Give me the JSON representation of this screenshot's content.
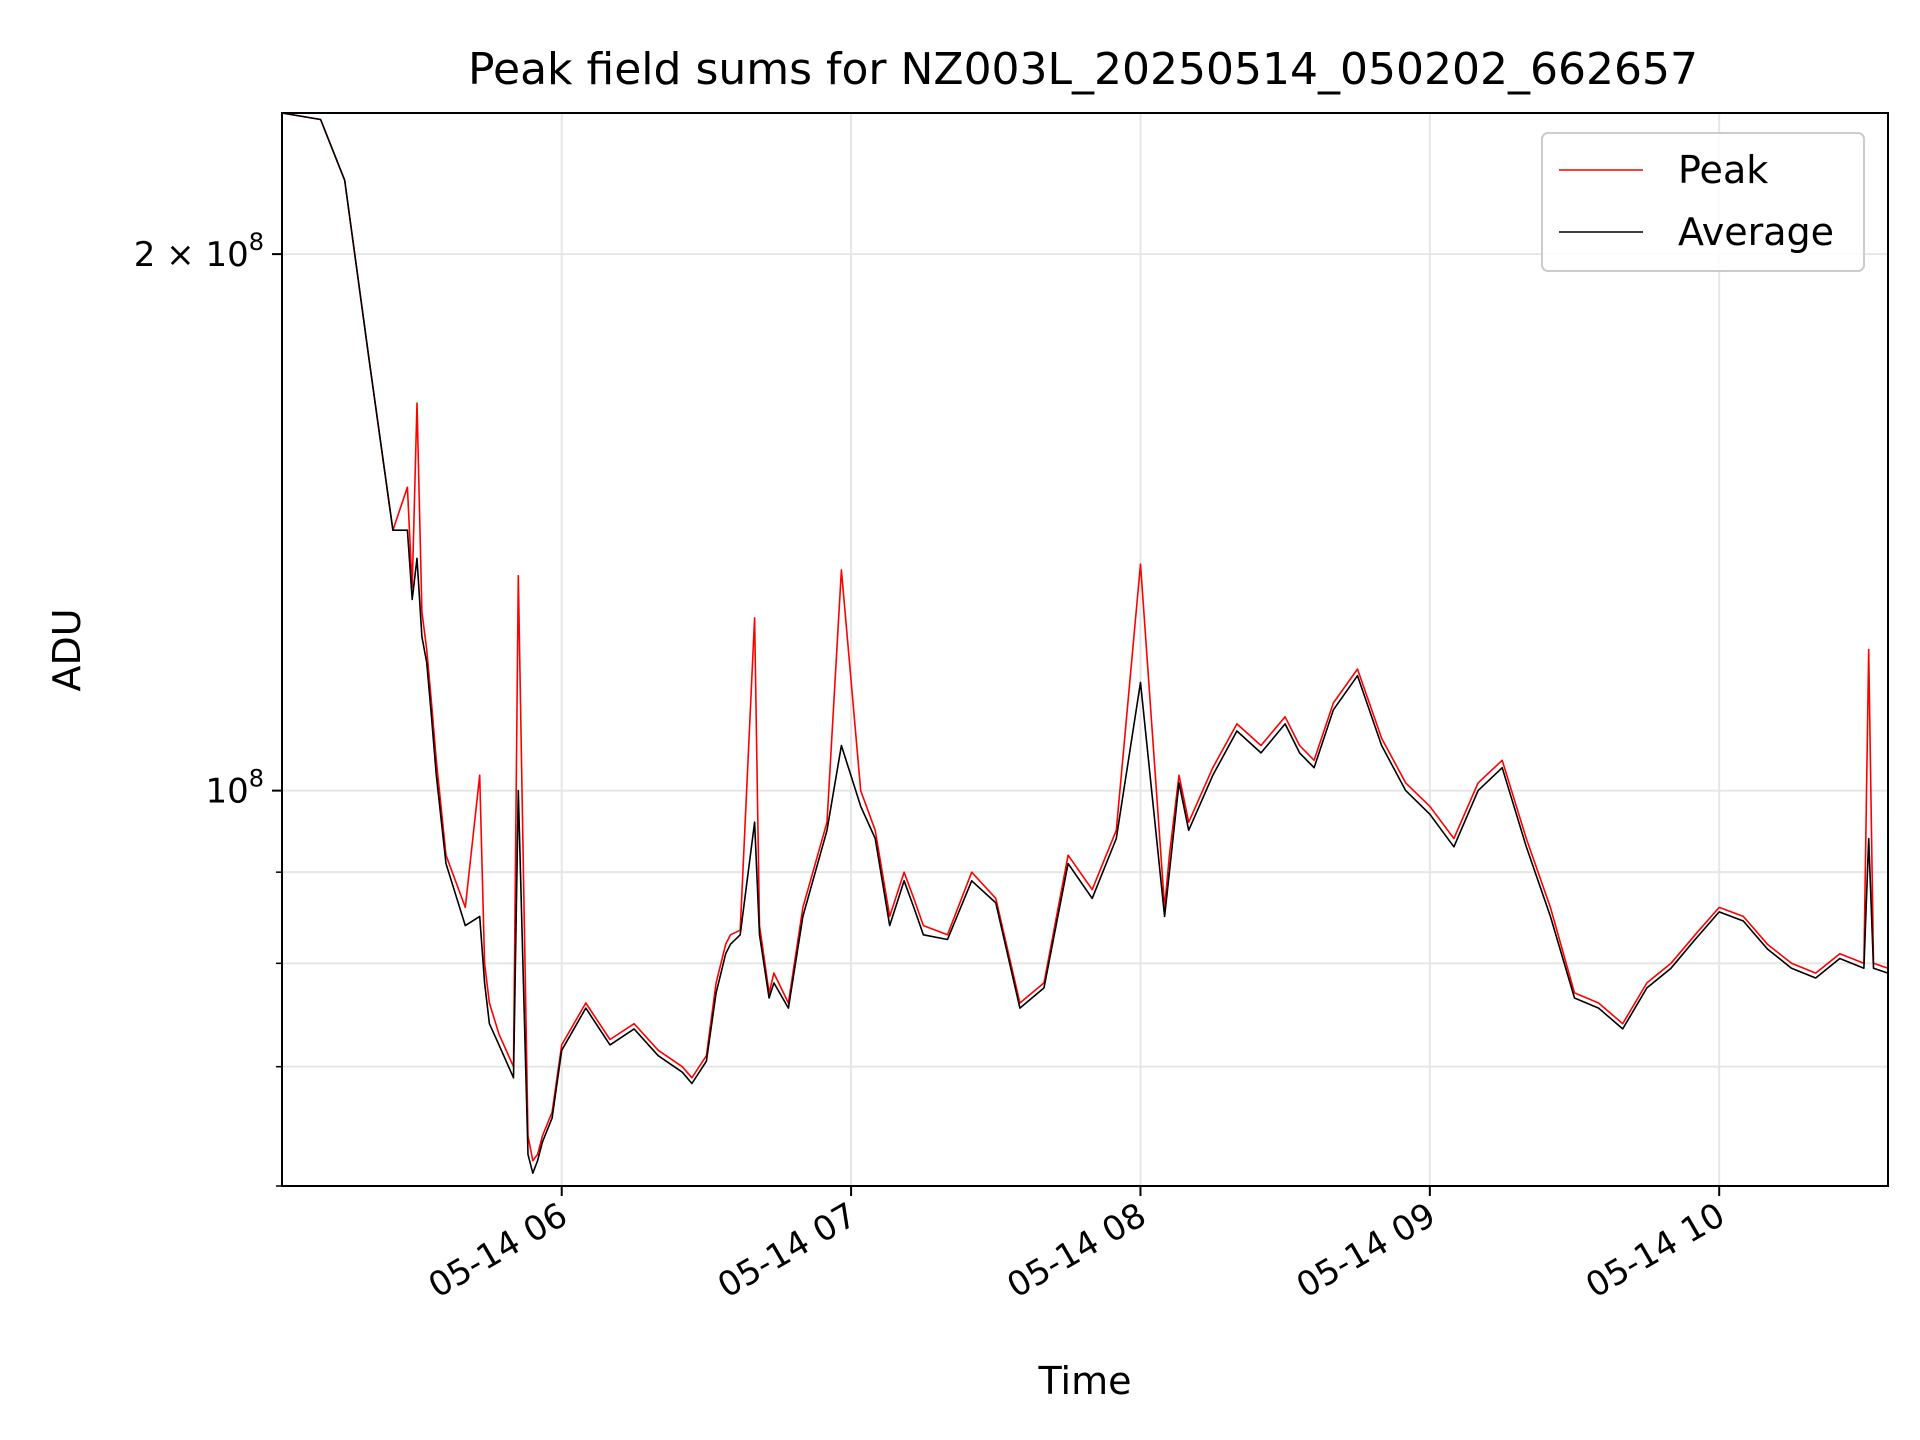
{
  "chart_data": {
    "type": "line",
    "title": "Peak field sums for NZ003L_20250514_050202_662657",
    "xlabel": "Time",
    "ylabel": "ADU",
    "y_scale": "log",
    "ylim": [
      60000000,
      240000000
    ],
    "xlim": [
      "2025-05-14 05:02",
      "2025-05-14 10:35"
    ],
    "x_ticks": [
      "05-14 06",
      "05-14 07",
      "05-14 08",
      "05-14 09",
      "05-14 10"
    ],
    "x_tick_values": [
      "2025-05-14 06:00",
      "2025-05-14 07:00",
      "2025-05-14 08:00",
      "2025-05-14 09:00",
      "2025-05-14 10:00"
    ],
    "y_tick_labels": [
      "2 × 10^8",
      "10^8"
    ],
    "y_tick_values": [
      200000000,
      100000000
    ],
    "y_minor_ticks": [
      60000000,
      70000000,
      80000000,
      90000000
    ],
    "grid": true,
    "legend_position": "top-right",
    "colors": {
      "Peak": "#ff0000",
      "Average": "#000000",
      "grid": "#e6e6e6"
    },
    "series": [
      {
        "name": "Peak",
        "x": [
          "2025-05-14 05:02",
          "2025-05-14 05:10",
          "2025-05-14 05:15",
          "2025-05-14 05:20",
          "2025-05-14 05:25",
          "2025-05-14 05:28",
          "2025-05-14 05:29",
          "2025-05-14 05:30",
          "2025-05-14 05:31",
          "2025-05-14 05:32",
          "2025-05-14 05:33",
          "2025-05-14 05:34",
          "2025-05-14 05:36",
          "2025-05-14 05:40",
          "2025-05-14 05:43",
          "2025-05-14 05:44",
          "2025-05-14 05:45",
          "2025-05-14 05:47",
          "2025-05-14 05:50",
          "2025-05-14 05:51",
          "2025-05-14 05:53",
          "2025-05-14 05:54",
          "2025-05-14 05:55",
          "2025-05-14 05:56",
          "2025-05-14 05:58",
          "2025-05-14 06:00",
          "2025-05-14 06:05",
          "2025-05-14 06:10",
          "2025-05-14 06:15",
          "2025-05-14 06:20",
          "2025-05-14 06:25",
          "2025-05-14 06:27",
          "2025-05-14 06:30",
          "2025-05-14 06:32",
          "2025-05-14 06:34",
          "2025-05-14 06:35",
          "2025-05-14 06:37",
          "2025-05-14 06:40",
          "2025-05-14 06:41",
          "2025-05-14 06:43",
          "2025-05-14 06:44",
          "2025-05-14 06:47",
          "2025-05-14 06:50",
          "2025-05-14 06:55",
          "2025-05-14 06:58",
          "2025-05-14 07:02",
          "2025-05-14 07:05",
          "2025-05-14 07:08",
          "2025-05-14 07:11",
          "2025-05-14 07:13",
          "2025-05-14 07:15",
          "2025-05-14 07:20",
          "2025-05-14 07:25",
          "2025-05-14 07:30",
          "2025-05-14 07:35",
          "2025-05-14 07:40",
          "2025-05-14 07:45",
          "2025-05-14 07:50",
          "2025-05-14 07:55",
          "2025-05-14 08:00",
          "2025-05-14 08:05",
          "2025-05-14 08:06",
          "2025-05-14 08:08",
          "2025-05-14 08:10",
          "2025-05-14 08:15",
          "2025-05-14 08:20",
          "2025-05-14 08:25",
          "2025-05-14 08:30",
          "2025-05-14 08:33",
          "2025-05-14 08:36",
          "2025-05-14 08:40",
          "2025-05-14 08:45",
          "2025-05-14 08:50",
          "2025-05-14 08:55",
          "2025-05-14 09:00",
          "2025-05-14 09:05",
          "2025-05-14 09:10",
          "2025-05-14 09:15",
          "2025-05-14 09:20",
          "2025-05-14 09:25",
          "2025-05-14 09:30",
          "2025-05-14 09:35",
          "2025-05-14 09:40",
          "2025-05-14 09:45",
          "2025-05-14 09:50",
          "2025-05-14 09:55",
          "2025-05-14 10:00",
          "2025-05-14 10:05",
          "2025-05-14 10:10",
          "2025-05-14 10:15",
          "2025-05-14 10:20",
          "2025-05-14 10:25",
          "2025-05-14 10:30",
          "2025-05-14 10:31",
          "2025-05-14 10:32",
          "2025-05-14 10:35"
        ],
        "y": [
          240000000,
          238000000,
          220000000,
          175000000,
          140000000,
          148000000,
          130000000,
          165000000,
          126000000,
          120000000,
          112000000,
          104000000,
          92000000,
          86000000,
          102000000,
          80000000,
          76000000,
          73000000,
          70000000,
          132000000,
          64000000,
          62000000,
          62500000,
          64000000,
          66000000,
          72000000,
          76000000,
          72500000,
          74000000,
          71500000,
          70000000,
          69000000,
          71000000,
          78000000,
          82000000,
          83000000,
          83500000,
          125000000,
          84000000,
          77000000,
          79000000,
          76000000,
          86000000,
          96000000,
          133000000,
          100000000,
          95000000,
          85000000,
          90000000,
          87000000,
          84000000,
          83000000,
          90000000,
          87000000,
          76000000,
          78000000,
          92000000,
          88000000,
          95000000,
          134000000,
          86000000,
          92000000,
          102000000,
          96000000,
          103000000,
          109000000,
          106000000,
          110000000,
          106000000,
          104000000,
          112000000,
          117000000,
          107000000,
          101000000,
          98000000,
          94000000,
          101000000,
          104000000,
          94000000,
          86000000,
          77000000,
          76000000,
          74000000,
          78000000,
          80000000,
          83000000,
          86000000,
          85000000,
          82000000,
          80000000,
          79000000,
          81000000,
          80000000,
          120000000,
          80000000,
          79500000
        ],
        "note_spikes": []
      },
      {
        "name": "Average",
        "x": [
          "2025-05-14 05:02",
          "2025-05-14 05:10",
          "2025-05-14 05:15",
          "2025-05-14 05:20",
          "2025-05-14 05:25",
          "2025-05-14 05:28",
          "2025-05-14 05:29",
          "2025-05-14 05:30",
          "2025-05-14 05:31",
          "2025-05-14 05:32",
          "2025-05-14 05:33",
          "2025-05-14 05:34",
          "2025-05-14 05:36",
          "2025-05-14 05:40",
          "2025-05-14 05:43",
          "2025-05-14 05:44",
          "2025-05-14 05:45",
          "2025-05-14 05:47",
          "2025-05-14 05:50",
          "2025-05-14 05:51",
          "2025-05-14 05:53",
          "2025-05-14 05:54",
          "2025-05-14 05:55",
          "2025-05-14 05:56",
          "2025-05-14 05:58",
          "2025-05-14 06:00",
          "2025-05-14 06:05",
          "2025-05-14 06:10",
          "2025-05-14 06:15",
          "2025-05-14 06:20",
          "2025-05-14 06:25",
          "2025-05-14 06:27",
          "2025-05-14 06:30",
          "2025-05-14 06:32",
          "2025-05-14 06:34",
          "2025-05-14 06:35",
          "2025-05-14 06:37",
          "2025-05-14 06:40",
          "2025-05-14 06:41",
          "2025-05-14 06:43",
          "2025-05-14 06:44",
          "2025-05-14 06:47",
          "2025-05-14 06:50",
          "2025-05-14 06:55",
          "2025-05-14 06:58",
          "2025-05-14 07:02",
          "2025-05-14 07:05",
          "2025-05-14 07:08",
          "2025-05-14 07:11",
          "2025-05-14 07:13",
          "2025-05-14 07:15",
          "2025-05-14 07:20",
          "2025-05-14 07:25",
          "2025-05-14 07:30",
          "2025-05-14 07:35",
          "2025-05-14 07:40",
          "2025-05-14 07:45",
          "2025-05-14 07:50",
          "2025-05-14 07:55",
          "2025-05-14 08:00",
          "2025-05-14 08:05",
          "2025-05-14 08:06",
          "2025-05-14 08:08",
          "2025-05-14 08:10",
          "2025-05-14 08:15",
          "2025-05-14 08:20",
          "2025-05-14 08:25",
          "2025-05-14 08:30",
          "2025-05-14 08:33",
          "2025-05-14 08:36",
          "2025-05-14 08:40",
          "2025-05-14 08:45",
          "2025-05-14 08:50",
          "2025-05-14 08:55",
          "2025-05-14 09:00",
          "2025-05-14 09:05",
          "2025-05-14 09:10",
          "2025-05-14 09:15",
          "2025-05-14 09:20",
          "2025-05-14 09:25",
          "2025-05-14 09:30",
          "2025-05-14 09:35",
          "2025-05-14 09:40",
          "2025-05-14 09:45",
          "2025-05-14 09:50",
          "2025-05-14 09:55",
          "2025-05-14 10:00",
          "2025-05-14 10:05",
          "2025-05-14 10:10",
          "2025-05-14 10:15",
          "2025-05-14 10:20",
          "2025-05-14 10:25",
          "2025-05-14 10:30",
          "2025-05-14 10:31",
          "2025-05-14 10:32",
          "2025-05-14 10:35"
        ],
        "y": [
          240000000,
          238000000,
          220000000,
          175000000,
          140000000,
          140000000,
          128000000,
          135000000,
          122000000,
          118000000,
          110000000,
          102000000,
          91000000,
          84000000,
          85000000,
          78000000,
          74000000,
          72000000,
          69000000,
          100000000,
          62500000,
          61000000,
          62000000,
          63500000,
          65500000,
          71500000,
          75500000,
          72000000,
          73500000,
          71000000,
          69500000,
          68500000,
          70500000,
          77000000,
          81000000,
          82000000,
          83000000,
          96000000,
          83000000,
          76500000,
          78000000,
          75500000,
          85000000,
          95000000,
          106000000,
          98000000,
          94000000,
          84000000,
          89000000,
          86000000,
          83000000,
          82500000,
          89000000,
          86500000,
          75500000,
          77500000,
          91000000,
          87000000,
          94000000,
          115000000,
          85000000,
          90000000,
          101000000,
          95000000,
          102000000,
          108000000,
          105000000,
          109000000,
          105000000,
          103000000,
          111000000,
          116000000,
          106000000,
          100000000,
          97000000,
          93000000,
          100000000,
          103000000,
          93000000,
          85000000,
          76500000,
          75500000,
          73500000,
          77500000,
          79500000,
          82500000,
          85500000,
          84500000,
          81500000,
          79500000,
          78500000,
          80500000,
          79500000,
          94000000,
          79500000,
          79000000
        ]
      }
    ]
  }
}
